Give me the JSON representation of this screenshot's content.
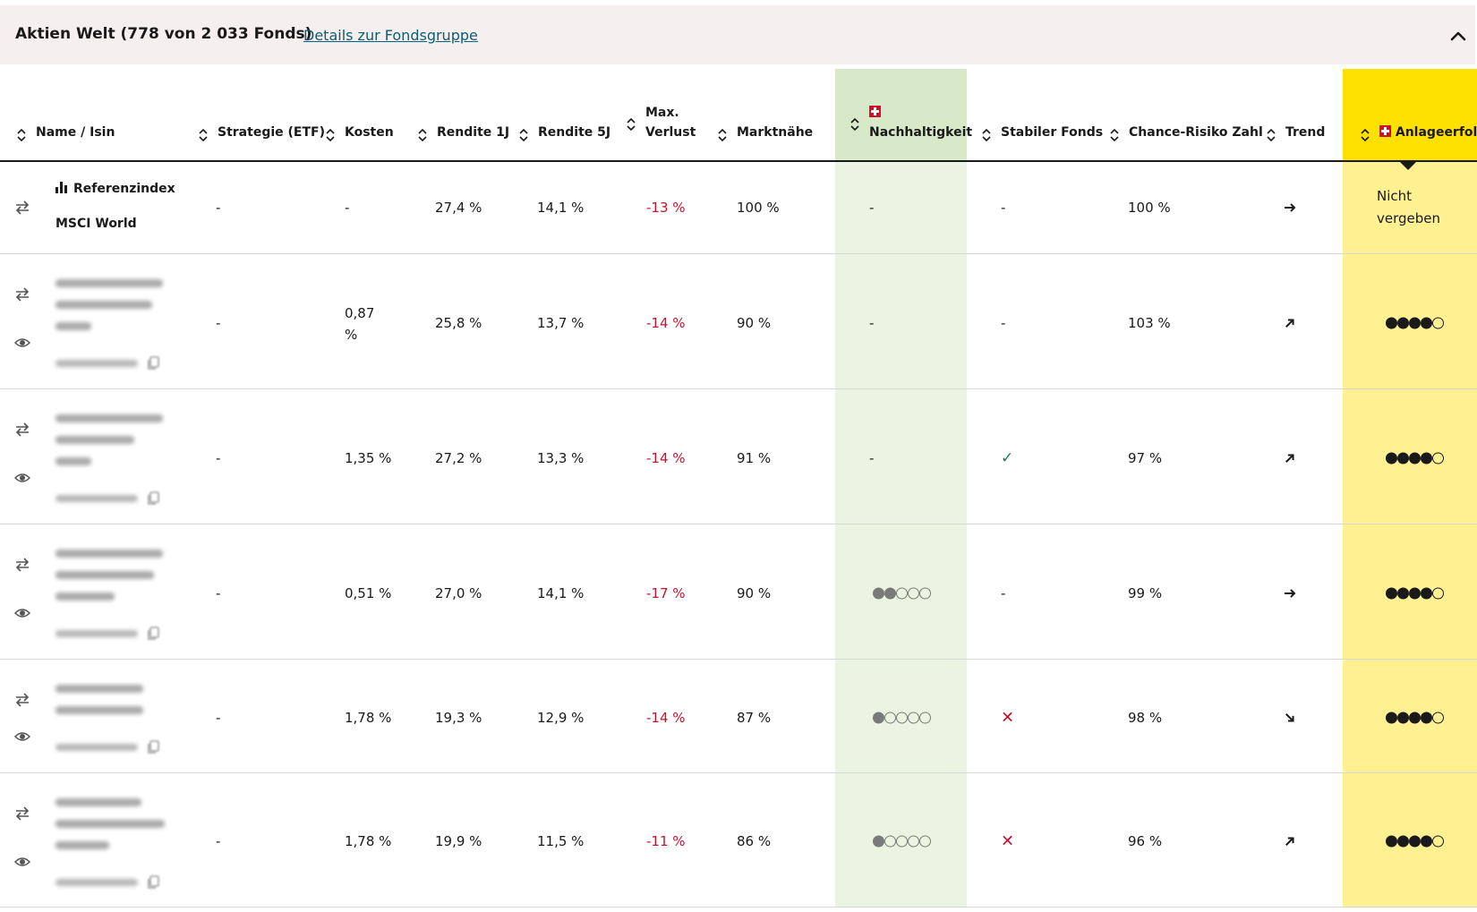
{
  "group": {
    "title": "Aktien Welt (778 von 2 033 Fonds)",
    "details_link": "Details zur Fondsgruppe"
  },
  "columns": {
    "name": "Name / Isin",
    "strategie": "Strategie (ETF)",
    "kosten": "Kosten",
    "rendite1": "Rendite 1J",
    "rendite5": "Rendite 5J",
    "maxverlust_1": "Max.",
    "maxverlust_2": "Verlust",
    "marktnaehe": "Marktnähe",
    "nachhaltigkeit": "Nachhaltigkeit",
    "stabil": "Stabiler Fonds",
    "chance": "Chance-Risiko Zahl",
    "trend": "Trend",
    "anlageerfolg": "Anlageerfolg"
  },
  "reference": {
    "label": "Referenzindex",
    "name": "MSCI World",
    "strategie": "-",
    "kosten": "-",
    "rendite1": "27,4 %",
    "rendite5": "14,1 %",
    "maxverlust": "-13 %",
    "marktnaehe": "100 %",
    "nachhaltigkeit": "-",
    "stabil": "-",
    "chance": "100 %",
    "trend": "right",
    "anlageerfolg_1": "Nicht",
    "anlageerfolg_2": "vergeben"
  },
  "funds": [
    {
      "strategie": "-",
      "kosten": "0,87",
      "kosten_unit": "%",
      "rendite1": "25,8 %",
      "rendite5": "13,7 %",
      "maxverlust": "-14 %",
      "marktnaehe": "90 %",
      "nachhaltigkeit": "-",
      "nachhaltigkeit_dots": 0,
      "stabil": "-",
      "chance": "103 %",
      "trend": "up-right",
      "anlageerfolg_dots": 4
    },
    {
      "strategie": "-",
      "kosten": "1,35 %",
      "rendite1": "27,2 %",
      "rendite5": "13,3 %",
      "maxverlust": "-14 %",
      "marktnaehe": "91 %",
      "nachhaltigkeit": "-",
      "nachhaltigkeit_dots": 0,
      "stabil": "check",
      "chance": "97 %",
      "trend": "up-right",
      "anlageerfolg_dots": 4
    },
    {
      "strategie": "-",
      "kosten": "0,51 %",
      "rendite1": "27,0 %",
      "rendite5": "14,1 %",
      "maxverlust": "-17 %",
      "marktnaehe": "90 %",
      "nachhaltigkeit": "",
      "nachhaltigkeit_dots": 2,
      "stabil": "-",
      "chance": "99 %",
      "trend": "right",
      "anlageerfolg_dots": 4
    },
    {
      "strategie": "-",
      "kosten": "1,78 %",
      "rendite1": "19,3 %",
      "rendite5": "12,9 %",
      "maxverlust": "-14 %",
      "marktnaehe": "87 %",
      "nachhaltigkeit": "",
      "nachhaltigkeit_dots": 1,
      "stabil": "cross",
      "chance": "98 %",
      "trend": "down-right",
      "anlageerfolg_dots": 4
    },
    {
      "strategie": "-",
      "kosten": "1,78 %",
      "rendite1": "19,9 %",
      "rendite5": "11,5 %",
      "maxverlust": "-11 %",
      "marktnaehe": "86 %",
      "nachhaltigkeit": "",
      "nachhaltigkeit_dots": 1,
      "stabil": "cross",
      "chance": "96 %",
      "trend": "up-right",
      "anlageerfolg_dots": 4
    }
  ],
  "stabil_symbols": {
    "check": "✓",
    "cross": "✕"
  },
  "colors": {
    "header_bg": "#f5efef",
    "link": "#0a5d73",
    "negative": "#c4132e",
    "nachhaltigkeit_header": "#d8e9c9",
    "nachhaltigkeit_body": "#eaf4e0",
    "anlageerfolg_header": "#ffe100",
    "anlageerfolg_body": "#fff192"
  },
  "icons": {
    "sort": "sort-updown-icon",
    "compare": "compare-arrows-icon",
    "watch": "eye-icon",
    "copy": "copy-icon",
    "collapse": "chevron-up-icon",
    "reference": "bar-chart-icon"
  }
}
